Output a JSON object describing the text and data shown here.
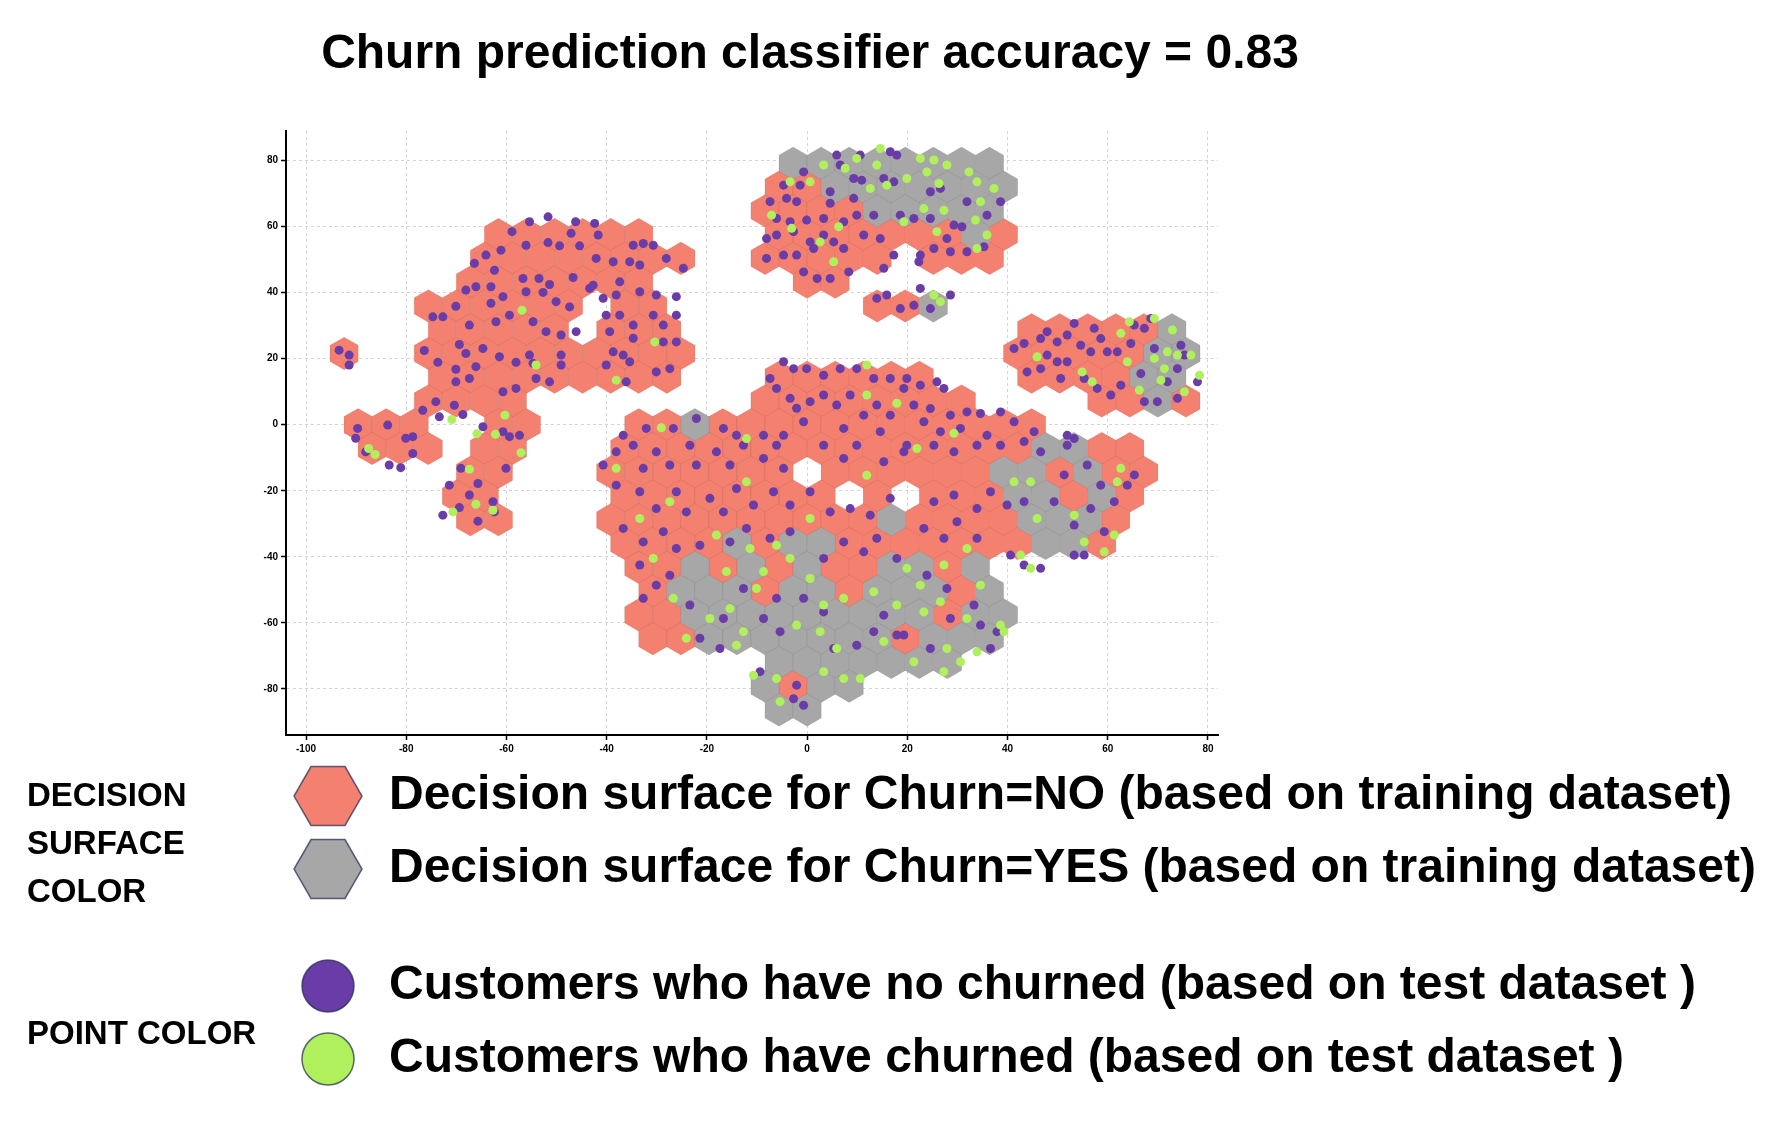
{
  "chart_data": {
    "type": "scatter",
    "title": "Churn prediction classifier accuracy = 0.83",
    "xlim": [
      -104,
      82
    ],
    "ylim": [
      -94,
      89
    ],
    "xticks": [
      -100,
      -80,
      -60,
      -40,
      -20,
      0,
      20,
      40,
      60,
      80
    ],
    "yticks": [
      -80,
      -60,
      -40,
      -20,
      0,
      20,
      40,
      60,
      80
    ],
    "grid": true,
    "legend": "bottom",
    "annotations": [
      "DECISION SURFACE COLOR",
      "POINT COLOR"
    ],
    "series": [
      {
        "name": "Decision surface for Churn=NO (based on training dataset)",
        "color": "#f4806f",
        "x": [
          -5.6,
          0,
          -8.4,
          -2.8,
          2.8,
          8.4,
          -61.6,
          -56,
          -50.4,
          -44.8,
          -39.2,
          -33.6,
          -5.6,
          0,
          5.6,
          11.2,
          16.8,
          22.4,
          28,
          39.2,
          -64.4,
          -58.8,
          -53.2,
          -47.6,
          -42,
          -36.4,
          -30.8,
          -25.2,
          -8.4,
          -2.8,
          2.8,
          8.4,
          14,
          25.2,
          30.8,
          36.4,
          -67.2,
          -61.6,
          -56,
          -50.4,
          -44.8,
          -39.2,
          -33.6,
          0,
          5.6,
          -75.6,
          -70,
          -64.4,
          -58.8,
          -53.2,
          -47.6,
          -36.4,
          -30.8,
          14,
          19.6,
          -72.8,
          -67.2,
          -61.6,
          -56,
          -50.4,
          -39.2,
          -33.6,
          -28,
          44.8,
          50.4,
          56,
          61.6,
          67.2,
          -92.4,
          -75.6,
          -70,
          -64.4,
          -58.8,
          -53.2,
          -47.6,
          -42,
          -36.4,
          -30.8,
          -25.2,
          42,
          47.6,
          53.2,
          58.8,
          64.4,
          -72.8,
          -67.2,
          -61.6,
          -56,
          -50.4,
          -44.8,
          -39.2,
          -33.6,
          -28,
          -5.6,
          0,
          5.6,
          11.2,
          16.8,
          22.4,
          44.8,
          50.4,
          56,
          61.6,
          -75.6,
          -70,
          -64.4,
          -58.8,
          -8.4,
          -2.8,
          2.8,
          8.4,
          14,
          19.6,
          25.2,
          30.8,
          58.8,
          64.4,
          75.6,
          -89.6,
          -84,
          -78.4,
          -61.6,
          -56,
          -33.6,
          -28,
          -16.8,
          -11.2,
          -5.6,
          0,
          5.6,
          11.2,
          16.8,
          22.4,
          28,
          33.6,
          39.2,
          44.8,
          -86.8,
          -81.2,
          -75.6,
          -64.4,
          -58.8,
          -36.4,
          -30.8,
          -25.2,
          -19.6,
          -14,
          -8.4,
          -2.8,
          2.8,
          8.4,
          14,
          19.6,
          25.2,
          30.8,
          36.4,
          42,
          58.8,
          64.4,
          -67.2,
          -61.6,
          -39.2,
          -33.6,
          -28,
          -22.4,
          -16.8,
          -11.2,
          -5.6,
          5.6,
          11.2,
          16.8,
          22.4,
          28,
          33.6,
          50.4,
          61.6,
          67.2,
          -70,
          -64.4,
          -36.4,
          -30.8,
          -25.2,
          -19.6,
          -14,
          -8.4,
          -2.8,
          2.8,
          14,
          25.2,
          30.8,
          36.4,
          53.2,
          64.4,
          -67.2,
          -61.6,
          -39.2,
          -33.6,
          -28,
          -22.4,
          -16.8,
          -11.2,
          -5.6,
          0,
          5.6,
          11.2,
          22.4,
          28,
          33.6,
          39.2,
          61.6,
          -36.4,
          -30.8,
          -25.2,
          -19.6,
          -8.4,
          8.4,
          14,
          19.6,
          25.2,
          30.8,
          36.4,
          42,
          58.8,
          -33.6,
          -28,
          -16.8,
          -5.6,
          5.6,
          11.2,
          28,
          -30.8,
          -8.4,
          8.4,
          30.8,
          -33.6,
          -28,
          28,
          -30.8,
          -25.2,
          19.6,
          -2.8
        ],
        "values": [
          72,
          72,
          64.8,
          64.8,
          64.8,
          64.8,
          57.6,
          57.6,
          57.6,
          57.6,
          57.6,
          57.6,
          57.6,
          57.6,
          57.6,
          57.6,
          57.6,
          57.6,
          57.6,
          57.6,
          50.4,
          50.4,
          50.4,
          50.4,
          50.4,
          50.4,
          50.4,
          50.4,
          50.4,
          50.4,
          50.4,
          50.4,
          50.4,
          50.4,
          50.4,
          50.4,
          43.2,
          43.2,
          43.2,
          43.2,
          43.2,
          43.2,
          43.2,
          43.2,
          43.2,
          36,
          36,
          36,
          36,
          36,
          36,
          36,
          36,
          36,
          36,
          28.8,
          28.8,
          28.8,
          28.8,
          28.8,
          28.8,
          28.8,
          28.8,
          28.8,
          28.8,
          28.8,
          28.8,
          28.8,
          21.6,
          21.6,
          21.6,
          21.6,
          21.6,
          21.6,
          21.6,
          21.6,
          21.6,
          21.6,
          21.6,
          21.6,
          21.6,
          21.6,
          21.6,
          21.6,
          14.4,
          14.4,
          14.4,
          14.4,
          14.4,
          14.4,
          14.4,
          14.4,
          14.4,
          14.4,
          14.4,
          14.4,
          14.4,
          14.4,
          14.4,
          14.4,
          14.4,
          14.4,
          14.4,
          7.2,
          7.2,
          7.2,
          7.2,
          7.2,
          7.2,
          7.2,
          7.2,
          7.2,
          7.2,
          7.2,
          7.2,
          7.2,
          7.2,
          7.2,
          0,
          0,
          0,
          0,
          0,
          0,
          0,
          0,
          0,
          0,
          0,
          0,
          0,
          0,
          0,
          0,
          0,
          0,
          0,
          -7.2,
          -7.2,
          -7.2,
          -7.2,
          -7.2,
          -7.2,
          -7.2,
          -7.2,
          -7.2,
          -7.2,
          -7.2,
          -7.2,
          -7.2,
          -7.2,
          -7.2,
          -7.2,
          -7.2,
          -7.2,
          -7.2,
          -7.2,
          -7.2,
          -7.2,
          -14.4,
          -14.4,
          -14.4,
          -14.4,
          -14.4,
          -14.4,
          -14.4,
          -14.4,
          -14.4,
          -14.4,
          -14.4,
          -14.4,
          -14.4,
          -14.4,
          -14.4,
          -14.4,
          -14.4,
          -14.4,
          -21.6,
          -21.6,
          -21.6,
          -21.6,
          -21.6,
          -21.6,
          -21.6,
          -21.6,
          -21.6,
          -21.6,
          -21.6,
          -21.6,
          -21.6,
          -21.6,
          -21.6,
          -21.6,
          -28.8,
          -28.8,
          -28.8,
          -28.8,
          -28.8,
          -28.8,
          -28.8,
          -28.8,
          -28.8,
          -28.8,
          -28.8,
          -28.8,
          -28.8,
          -28.8,
          -28.8,
          -28.8,
          -28.8,
          -36,
          -36,
          -36,
          -36,
          -36,
          -36,
          -36,
          -36,
          -36,
          -36,
          -36,
          -36,
          -36,
          -43.2,
          -43.2,
          -43.2,
          -43.2,
          -43.2,
          -43.2,
          -43.2,
          -50.4,
          -50.4,
          -50.4,
          -50.4,
          -57.6,
          -57.6,
          -57.6,
          -64.8,
          -64.8,
          -64.8,
          -79.2
        ]
      },
      {
        "name": "Decision surface for Churn=YES (based on training dataset)",
        "color": "#a7a7a7",
        "x": [
          -2.8,
          2.8,
          8.4,
          14,
          19.6,
          25.2,
          30.8,
          36.4,
          5.6,
          11.2,
          16.8,
          22.4,
          28,
          33.6,
          39.2,
          14,
          19.6,
          25.2,
          30.8,
          36.4,
          33.6,
          25.2,
          72.8,
          70,
          75.6,
          67.2,
          72.8,
          70,
          -22.4,
          47.6,
          53.2,
          39.2,
          44.8,
          56,
          42,
          47.6,
          58.8,
          16.8,
          44.8,
          50.4,
          56,
          -14,
          -2.8,
          2.8,
          47.6,
          53.2,
          -22.4,
          -11.2,
          0,
          16.8,
          22.4,
          33.6,
          -25.2,
          -19.6,
          -14,
          -2.8,
          2.8,
          14,
          19.6,
          25.2,
          36.4,
          -22.4,
          -16.8,
          -11.2,
          -5.6,
          0,
          5.6,
          11.2,
          16.8,
          22.4,
          33.6,
          39.2,
          -19.6,
          -14,
          -8.4,
          -2.8,
          2.8,
          8.4,
          14,
          25.2,
          30.8,
          36.4,
          -5.6,
          0,
          5.6,
          11.2,
          16.8,
          22.4,
          28,
          -8.4,
          2.8,
          8.4,
          -5.6,
          0
        ],
        "values": [
          79.2,
          79.2,
          79.2,
          79.2,
          79.2,
          79.2,
          79.2,
          79.2,
          72,
          72,
          72,
          72,
          72,
          72,
          72,
          64.8,
          64.8,
          64.8,
          64.8,
          64.8,
          57.6,
          36,
          28.8,
          21.6,
          21.6,
          14.4,
          14.4,
          7.2,
          0,
          -7.2,
          -7.2,
          -14.4,
          -14.4,
          -14.4,
          -21.6,
          -21.6,
          -21.6,
          -28.8,
          -28.8,
          -28.8,
          -28.8,
          -36,
          -36,
          -36,
          -36,
          -36,
          -43.2,
          -43.2,
          -43.2,
          -43.2,
          -43.2,
          -43.2,
          -50.4,
          -50.4,
          -50.4,
          -50.4,
          -50.4,
          -50.4,
          -50.4,
          -50.4,
          -50.4,
          -57.6,
          -57.6,
          -57.6,
          -57.6,
          -57.6,
          -57.6,
          -57.6,
          -57.6,
          -57.6,
          -57.6,
          -57.6,
          -64.8,
          -64.8,
          -64.8,
          -64.8,
          -64.8,
          -64.8,
          -64.8,
          -64.8,
          -64.8,
          -64.8,
          -72,
          -72,
          -72,
          -72,
          -72,
          -72,
          -72,
          -79.2,
          -79.2,
          -79.2,
          -86.4,
          -86.4
        ]
      },
      {
        "name": "Customers who have no churned (based on test dataset )",
        "color": "#6a3ca8",
        "marker": "circle",
        "x": [
          -51.7,
          -55.4,
          -58.9,
          -46.2,
          -42.4,
          -61.1,
          -64.1,
          -66.4,
          -56.1,
          -51.7,
          -49.4,
          -47.1,
          -45.4,
          -62.4,
          -56.7,
          -53.5,
          -51.4,
          -46.7,
          -43.4,
          -68.1,
          -66.1,
          -63.1,
          -63.1,
          -60.7,
          -56.1,
          -52.7,
          -50.1,
          -47.4,
          -70.1,
          -74.7,
          -72.7,
          -67.4,
          -62.1,
          -59.4,
          -54.7,
          -52.1,
          -49.1,
          -46.1,
          -76.4,
          -73.7,
          -70.1,
          -69.4,
          -68.1,
          -66.1,
          -64.7,
          -61.4,
          -58.1,
          -54.7,
          -55.4,
          -54.1,
          -51.4,
          -49.1,
          -49.1,
          -60.7,
          -58.1,
          -70.1,
          -67.4,
          -74.1,
          -76.7,
          -73.4,
          -70.4,
          -68.7,
          -64.7,
          -60.7,
          -57.4,
          -93.4,
          -91.4,
          -91.4,
          -83.7,
          -89.7,
          -78.7,
          -90.1,
          -88.1,
          -83.4,
          -81.1,
          -78.7,
          -80.1,
          -59.4,
          -69.1,
          -60.1,
          -71.4,
          -65.7,
          -67.4,
          -69.4,
          -72.7,
          -65.7,
          -62.4,
          -62.7,
          -41.7,
          -34.7,
          -32.7,
          -30.7,
          -28.1,
          -24.7,
          -42.1,
          -38.7,
          -35.4,
          -33.4,
          -42.7,
          -37.4,
          -40.7,
          -38.1,
          -33.4,
          -30.1,
          -26.1,
          -40.1,
          -37.4,
          -34.7,
          -30.7,
          -28.7,
          -26.1,
          -39.4,
          -34.7,
          -28.7,
          -26.1,
          -38.7,
          -36.7,
          -40.1,
          -35.4,
          -30.1,
          -27.4,
          -36.1,
          5.9,
          6.6,
          10.6,
          16.6,
          17.9,
          -0.7,
          -4.7,
          -1.4,
          4.6,
          9.3,
          10.9,
          15.3,
          17.3,
          -7.4,
          -4.1,
          -2.1,
          4.6,
          9.3,
          13.3,
          18.6,
          -6.1,
          -3.4,
          -0.1,
          3.3,
          7.3,
          9.9,
          -8.1,
          -6.1,
          -2.7,
          0.6,
          3.3,
          5.3,
          7.3,
          11.3,
          14.6,
          17.3,
          -8.1,
          -4.7,
          -2.1,
          1.3,
          -0.7,
          2,
          4.6,
          8.3,
          15.3,
          13.9,
          15.9,
          18.6,
          24.6,
          26.6,
          31.9,
          35.9,
          38.6,
          29.3,
          30.9,
          24.6,
          21.3,
          27.9,
          25.3,
          28.6,
          31.9,
          35.3,
          22.6,
          22.3,
          28.6,
          22.6,
          21.3,
          24.6,
          41.3,
          43.3,
          46.6,
          47.9,
          49.9,
          51.9,
          53.3,
          57.3,
          58.6,
          47.9,
          49.9,
          51.9,
          54.6,
          56.6,
          59.9,
          61.9,
          64.6,
          65.3,
          67.3,
          68.6,
          43.9,
          46.6,
          50.6,
          55.3,
          57.9,
          60.6,
          62.6,
          66.6,
          69.3,
          71.9,
          73.9,
          75.3,
          77.9,
          73.9,
          69.9,
          67.3,
          74.6,
          -4.7,
          -2.7,
          -0.1,
          3.3,
          6.6,
          9.9,
          13.3,
          16.6,
          -7.4,
          -6.1,
          -3.4,
          -2.1,
          -0.7,
          0.6,
          3.3,
          5.9,
          8.6,
          11.3,
          13.9,
          16.6,
          19.3,
          -4.7,
          7.3,
          14.6,
          -36.7,
          -32.1,
          -26.7,
          -22.1,
          -16.7,
          -14.1,
          -8.7,
          19.9,
          22.6,
          25.9,
          27.3,
          21.3,
          24.6,
          28.6,
          31.9,
          34.6,
          38.6,
          41.3,
          45.3,
          51.9,
          53.3,
          23.3,
          26.6,
          30.6,
          35.9,
          -40.7,
          -38.1,
          -34.7,
          -32.7,
          -30.1,
          -27.4,
          -23.4,
          -22.1,
          -18.1,
          -15.4,
          -12.7,
          -8.7,
          -6.1,
          -4.7,
          3.3,
          7.3,
          9.9,
          15.3,
          19.3,
          -38.1,
          -33.4,
          -30.1,
          -26.1,
          -24.1,
          -19.4,
          -16.7,
          -14.1,
          -10.7,
          -6.7,
          -3.4,
          0.6,
          4.6,
          8.6,
          12.6,
          16.6,
          -36.7,
          -32.7,
          -28.7,
          -26.1,
          -21.4,
          -15.4,
          -12.1,
          -7.4,
          -3.4,
          3.3,
          7.3,
          11.3,
          13.9,
          17.9,
          -33.4,
          -30.1,
          -27.4,
          -23.4,
          -16.7,
          -12.7,
          -8.7,
          -6.1,
          -5.4,
          -0.7,
          3.3,
          5.3,
          9.9,
          13.3,
          15.3,
          17.9,
          -9.4,
          -2.7,
          -0.7,
          -2.1,
          -21.4,
          -17.4,
          -32.7,
          19.9,
          25.3,
          29.3,
          33.9,
          38.6,
          43.3,
          46.6,
          51.9,
          55.9,
          51.3,
          58.6,
          61.3,
          63.9,
          65.3,
          25.3,
          29.3,
          33.9,
          36.6,
          39.9,
          43.3,
          49.3,
          53.3,
          56.6,
          59.3,
          55.3,
          53.3,
          46.6,
          43.3,
          40.6,
          33.9,
          29.9,
          23.3,
          27.3,
          23.9,
          27.9,
          33.3,
          37.9,
          34.6,
          28.6,
          24.6,
          19.3,
          36.6
        ],
        "values": [
          63,
          61.5,
          58.5,
          61.5,
          61,
          52.9,
          51.4,
          48.9,
          54.4,
          55.2,
          54.2,
          58,
          54.2,
          46.8,
          44.3,
          44.3,
          42.5,
          44.6,
          41.3,
          40.8,
          41.8,
          41.8,
          36.8,
          38.8,
          40.3,
          40.1,
          37.3,
          35.7,
          35.9,
          32.7,
          32.7,
          30.2,
          31.2,
          33.2,
          31.2,
          28.2,
          27.2,
          28.2,
          22.5,
          18.9,
          16.8,
          24.3,
          21.6,
          17.6,
          23.1,
          20.6,
          18.9,
          18.6,
          21.1,
          14,
          13,
          21.1,
          18.1,
          10,
          11,
          13,
          14,
          7,
          4.4,
          2.4,
          5.9,
          3.1,
          -0.6,
          -2.1,
          -3.2,
          22.6,
          21.1,
          18.1,
          -0.1,
          -1.1,
          -3.6,
          -4.1,
          -8.2,
          -12.2,
          -13,
          -8.7,
          -4.1,
          -3.6,
          -13.2,
          -13.2,
          -18.3,
          -17.8,
          -21.3,
          -25.1,
          -27.4,
          -29.2,
          -26.4,
          -23.3,
          57.5,
          54.4,
          54.9,
          54.4,
          50.4,
          47.4,
          50.4,
          49.4,
          49.4,
          48.4,
          42.3,
          43.3,
          38.3,
          39.3,
          40.3,
          39.3,
          38.8,
          33.2,
          33.2,
          30.2,
          33.2,
          30.2,
          33.2,
          28.2,
          26.2,
          25.1,
          25.1,
          22.1,
          21.1,
          18.1,
          19.1,
          16,
          17,
          13,
          81.7,
          78.7,
          81.7,
          82.7,
          81.7,
          76.6,
          72.6,
          72.6,
          70.6,
          74.6,
          74.1,
          74.6,
          73.6,
          67.6,
          68.6,
          67.6,
          67.1,
          68.6,
          63.5,
          63.5,
          62.5,
          61.5,
          62,
          62.5,
          61.5,
          63.5,
          56.4,
          57.5,
          58.5,
          55.4,
          57.5,
          55.4,
          53.4,
          57.5,
          56.4,
          51.4,
          50.4,
          51.4,
          51.4,
          53.4,
          46.3,
          44.3,
          44.3,
          46.3,
          47.4,
          38.3,
          39.3,
          35.2,
          70.6,
          71.6,
          67.6,
          63.5,
          67.6,
          60.5,
          60,
          62.5,
          62.5,
          56.4,
          53.4,
          52.4,
          52.4,
          53.9,
          51.4,
          49.4,
          39.3,
          41.3,
          36.2,
          35.2,
          23.1,
          24.6,
          26.1,
          28.2,
          25.1,
          27.2,
          30.7,
          29.2,
          26.1,
          21.1,
          19.1,
          19.1,
          24.1,
          22.1,
          22.1,
          22.1,
          24.6,
          30.2,
          29.2,
          32.2,
          16,
          17,
          14,
          14,
          11,
          9,
          12,
          15.5,
          23.1,
          13,
          17,
          21.1,
          13,
          8,
          7,
          7,
          24.1,
          19.1,
          17,
          17,
          15,
          17,
          17,
          14,
          14,
          14,
          11,
          8,
          5,
          0.9,
          7,
          9,
          6,
          9,
          2.9,
          6,
          2.9,
          11,
          -3.2,
          -1.1,
          -2.1,
          -3.2,
          -1.1,
          -1.1,
          1.9,
          -1.1,
          -3.2,
          -3.2,
          14,
          12,
          13,
          11,
          6,
          4.9,
          2.9,
          3.9,
          3.4,
          3.9,
          0.9,
          -2.1,
          -3.2,
          -4.2,
          0.9,
          -2.1,
          -1.1,
          -3.2,
          -12.2,
          -8.2,
          -6.2,
          -13.2,
          -8.2,
          -12.2,
          -6.2,
          -12.2,
          -8.2,
          -12.2,
          -6.2,
          -10.2,
          -6.2,
          -13.2,
          -6.2,
          -10.2,
          -6.2,
          -11.2,
          -8.2,
          -18.3,
          -20.3,
          -25.4,
          -20.3,
          -26.4,
          -22.3,
          -26.4,
          -19.3,
          -24.3,
          -20.3,
          -24.3,
          -20.3,
          -26.4,
          -25.4,
          -27.4,
          -22.3,
          -31.4,
          -35.5,
          -32.4,
          -37.5,
          -36.5,
          -35.5,
          -31.4,
          -34.4,
          -32.4,
          -40.5,
          -35.5,
          -38.5,
          -34.4,
          -40.5,
          -42.5,
          -48.6,
          -45.6,
          -54.6,
          -58.7,
          -49.6,
          -58.7,
          -52.6,
          -62.7,
          -52.6,
          -56.7,
          -67.8,
          -66.8,
          -62.7,
          -57.7,
          -63.7,
          -74.8,
          -83,
          -85,
          -78.9,
          -64.7,
          -67.8,
          -52.6,
          -6.2,
          -6.2,
          -8.2,
          -6.2,
          -6.2,
          -5.1,
          -8.2,
          -6.2,
          -12.2,
          -15.2,
          -18.3,
          -23.3,
          -18.3,
          -15.2,
          -23.3,
          -21.3,
          -25.4,
          -20.3,
          -24.3,
          -23.3,
          -23.3,
          -30.4,
          -25.4,
          -32.4,
          -39.5,
          -39.5,
          -43.5,
          -42.5,
          -39.5,
          -34.4,
          -29.4,
          -31.4,
          -34.4,
          -45.6,
          -49.6,
          -54.6,
          -62.7,
          -60.7,
          -58.7,
          -67.8,
          -63.7,
          -67.8
        ]
      },
      {
        "name": "Customers who have churned (based on test dataset )",
        "color": "#b0f05c",
        "marker": "circle",
        "x": [
          -56.9,
          -70.9,
          -60.3,
          -65.9,
          -62.2,
          -87.5,
          -86.2,
          -57.1,
          -67.4,
          -66.1,
          -70.7,
          -62.7,
          -30.4,
          -38.1,
          -54.1,
          -3.4,
          0.6,
          3.3,
          7.6,
          9.9,
          13.9,
          14.6,
          12.6,
          15.9,
          -7.1,
          -3.1,
          6.3,
          2.6,
          5.3,
          19.3,
          22.6,
          25.3,
          27.9,
          32.3,
          33.9,
          37.3,
          34.6,
          23.9,
          26.3,
          19.9,
          23.3,
          27.3,
          33.6,
          35.9,
          33.9,
          25.9,
          26.6,
          25.3,
          45.9,
          54.9,
          56.9,
          62.6,
          64.3,
          69.3,
          72.9,
          71.9,
          69.3,
          71.3,
          73.9,
          76.6,
          78.3,
          66.3,
          75.3,
          70.6,
          63.9,
          11.9,
          11.9,
          17.9,
          -29.1,
          -12.1,
          29.3,
          -38.1,
          -33.4,
          -30.7,
          -26.7,
          -24.1,
          -19.4,
          -12.7,
          -14.1,
          -10.1,
          -11.4,
          -16.1,
          -8.7,
          -3.4,
          0.6,
          -2.1,
          2.6,
          3.3,
          7.3,
          5.9,
          10.6,
          7.3,
          3.3,
          -6.1,
          -5.4,
          -10.7,
          13.3,
          15.3,
          17.9,
          11.9,
          -12.1,
          -27.4,
          -18.1,
          -6.1,
          -15.4,
          0.6,
          21.9,
          41.3,
          44.6,
          53.3,
          55.3,
          59.3,
          61.3,
          62.6,
          61.9,
          45.9,
          42.6,
          44.6,
          27.3,
          22.6,
          19.9,
          26.6,
          23.3,
          31.9,
          38.6,
          39.3,
          33.9,
          30.6,
          27.3,
          21.3,
          27.9,
          34.6,
          31.9
        ],
        "values": [
          34.7,
          1.6,
          2.9,
          -2.7,
          -2.9,
          -7.2,
          -9,
          -8.5,
          -13.5,
          -24.1,
          -26.4,
          -25.9,
          25.1,
          13.5,
          18.1,
          73.6,
          73.6,
          78.7,
          77.7,
          80.7,
          78.7,
          83.7,
          71.6,
          72.6,
          63.5,
          59.5,
          60,
          55.4,
          49.4,
          61.5,
          80.7,
          80.2,
          78.7,
          76.6,
          73.6,
          71.6,
          67.6,
          76.6,
          73.1,
          74.6,
          65.5,
          65,
          62,
          57.5,
          53.4,
          58.5,
          37.3,
          39.3,
          20.6,
          16,
          13,
          27.7,
          31.2,
          32.2,
          28.7,
          22.1,
          20.1,
          17,
          21.1,
          21.1,
          15,
          10.5,
          10,
          13.5,
          19.1,
          18.1,
          9,
          6.5,
          -0.9,
          -4.2,
          -2.6,
          -13.2,
          -28.4,
          -40.5,
          -52.6,
          -64.7,
          -58.7,
          -62.7,
          -66.8,
          -49.6,
          -37.5,
          -44.5,
          -44.5,
          -40.5,
          -46.6,
          -60.7,
          -62.7,
          -54.6,
          -52.6,
          -67.8,
          -76.9,
          -76.9,
          -74.8,
          -76.9,
          -83.9,
          -75.9,
          -50.6,
          -65.7,
          -54.6,
          -15.3,
          -17.3,
          -23.3,
          -33.4,
          -36.5,
          -55.7,
          -28.4,
          -7.2,
          -17.3,
          -17.3,
          -27.4,
          -35.5,
          -38.5,
          -33.4,
          -13.2,
          -17.3,
          -28.4,
          -39.5,
          -43.5,
          -42.5,
          -48.6,
          -43.5,
          -53.6,
          -56.7,
          -58.7,
          -60.7,
          -62.7,
          -68.8,
          -71.8,
          -74.8,
          -71.8,
          -67.8,
          -48.6,
          -37.5
        ]
      }
    ]
  }
}
